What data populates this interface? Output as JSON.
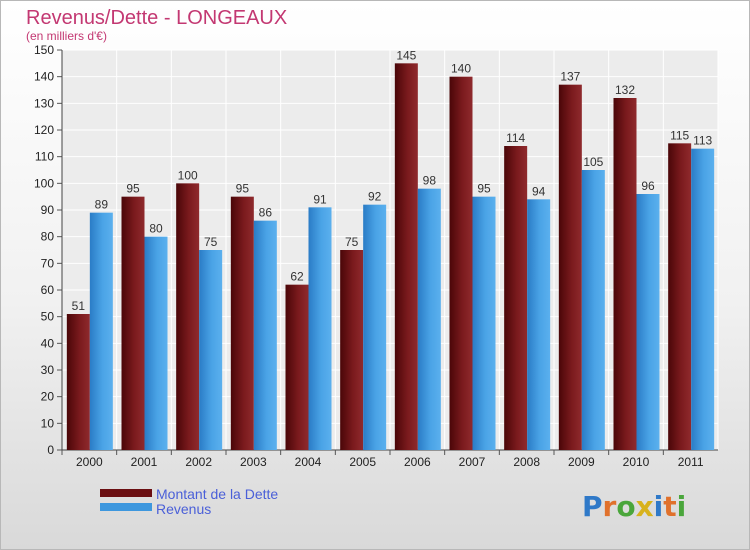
{
  "colors": {
    "debt": "#6b0f12",
    "revenue": "#3d97de",
    "title": "#c33872",
    "legend_text": "#4a5fd8"
  },
  "chart_data": {
    "type": "bar",
    "title": "Revenus/Dette - LONGEAUX",
    "subtitle": "(en milliers d'€)",
    "categories": [
      "2000",
      "2001",
      "2002",
      "2003",
      "2004",
      "2005",
      "2006",
      "2007",
      "2008",
      "2009",
      "2010",
      "2011"
    ],
    "series": [
      {
        "name": "Montant de la Dette",
        "values": [
          51,
          95,
          100,
          95,
          62,
          75,
          145,
          140,
          114,
          137,
          132,
          115
        ]
      },
      {
        "name": "Revenus",
        "values": [
          89,
          80,
          75,
          86,
          91,
          92,
          98,
          95,
          94,
          105,
          96,
          113
        ]
      }
    ],
    "yticks": [
      0,
      10,
      20,
      30,
      40,
      50,
      60,
      70,
      80,
      90,
      100,
      110,
      120,
      130,
      140,
      150
    ],
    "ylim": [
      0,
      150
    ],
    "grid": true,
    "legend_position": "bottom-left"
  },
  "logo": {
    "text": "Proxiti"
  }
}
